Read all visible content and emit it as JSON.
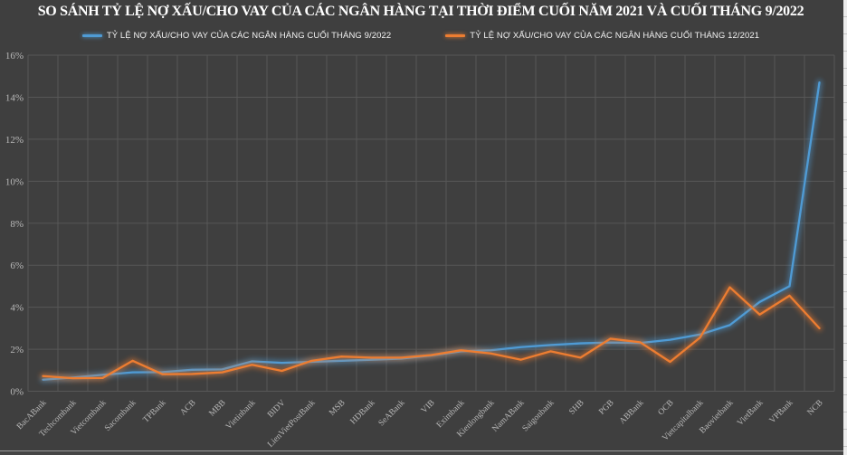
{
  "title": "SO SÁNH TỶ LỆ NỢ XẤU/CHO VAY CỦA CÁC NGÂN HÀNG TẠI THỜI ĐIỂM CUỐI NĂM 2021 VÀ CUỐI THÁNG 9/2022",
  "legend": [
    {
      "label": "TỶ LỆ NỢ XẤU/CHO VAY CỦA CÁC NGÂN HÀNG CUỐI THÁNG 9/2022",
      "color": "#4f9bd5"
    },
    {
      "label": "TỶ LỆ NỢ XẤU/CHO VAY CỦA CÁC NGÂN HÀNG CUỐI THÁNG 12/2021",
      "color": "#ed7d31"
    }
  ],
  "colors": {
    "background": "#3f3f3f",
    "gridline": "#575757",
    "axis_text": "#b9b9b9",
    "title_text": "#ffffff",
    "series_blue": "#4f9bd5",
    "series_orange": "#ed7d31"
  },
  "chart_data": {
    "type": "line",
    "title": "SO SÁNH TỶ LỆ NỢ XẤU/CHO VAY CỦA CÁC NGÂN HÀNG TẠI THỜI ĐIỂM CUỐI NĂM 2021 VÀ CUỐI THÁNG 9/2022",
    "categories": [
      "BacABank",
      "Techcombank",
      "Vietcombank",
      "Sacombank",
      "TPBank",
      "ACB",
      "MBB",
      "Vietinbank",
      "BIDV",
      "LienVietPostBank",
      "MSB",
      "HDBank",
      "SeABank",
      "VIB",
      "Eximbank",
      "Kienlongbank",
      "NamABank",
      "Saigonbank",
      "SHB",
      "PGB",
      "ABBank",
      "OCB",
      "Vietcapitalbank",
      "Baovietbank",
      "VietBank",
      "VPBank",
      "NCB"
    ],
    "series": [
      {
        "name": "Tỷ lệ nợ xấu/cho vay của các ngân hàng cuối tháng 9/2022",
        "color": "#4f9bd5",
        "values": [
          0.55,
          0.65,
          0.78,
          0.9,
          0.91,
          1.02,
          1.04,
          1.42,
          1.35,
          1.4,
          1.45,
          1.5,
          1.55,
          1.7,
          1.9,
          1.95,
          2.1,
          2.2,
          2.28,
          2.32,
          2.3,
          2.45,
          2.7,
          3.15,
          4.25,
          5.0,
          14.7
        ]
      },
      {
        "name": "Tỷ lệ nợ xấu/cho vay của các ngân hàng cuối tháng 12/2021",
        "color": "#ed7d31",
        "values": [
          0.72,
          0.62,
          0.63,
          1.45,
          0.81,
          0.82,
          0.9,
          1.26,
          0.97,
          1.45,
          1.65,
          1.6,
          1.6,
          1.72,
          1.95,
          1.8,
          1.5,
          1.9,
          1.6,
          2.5,
          2.33,
          1.4,
          2.55,
          4.95,
          3.65,
          4.55,
          3.0
        ]
      }
    ],
    "xlabel": "",
    "ylabel": "",
    "ylim": [
      0,
      16
    ],
    "ytick_step": 2,
    "ytick_format": "percent",
    "ytick_labels": [
      "0%",
      "2%",
      "4%",
      "6%",
      "8%",
      "10%",
      "12%",
      "14%",
      "16%"
    ],
    "grid": "both",
    "legend_position": "top"
  }
}
